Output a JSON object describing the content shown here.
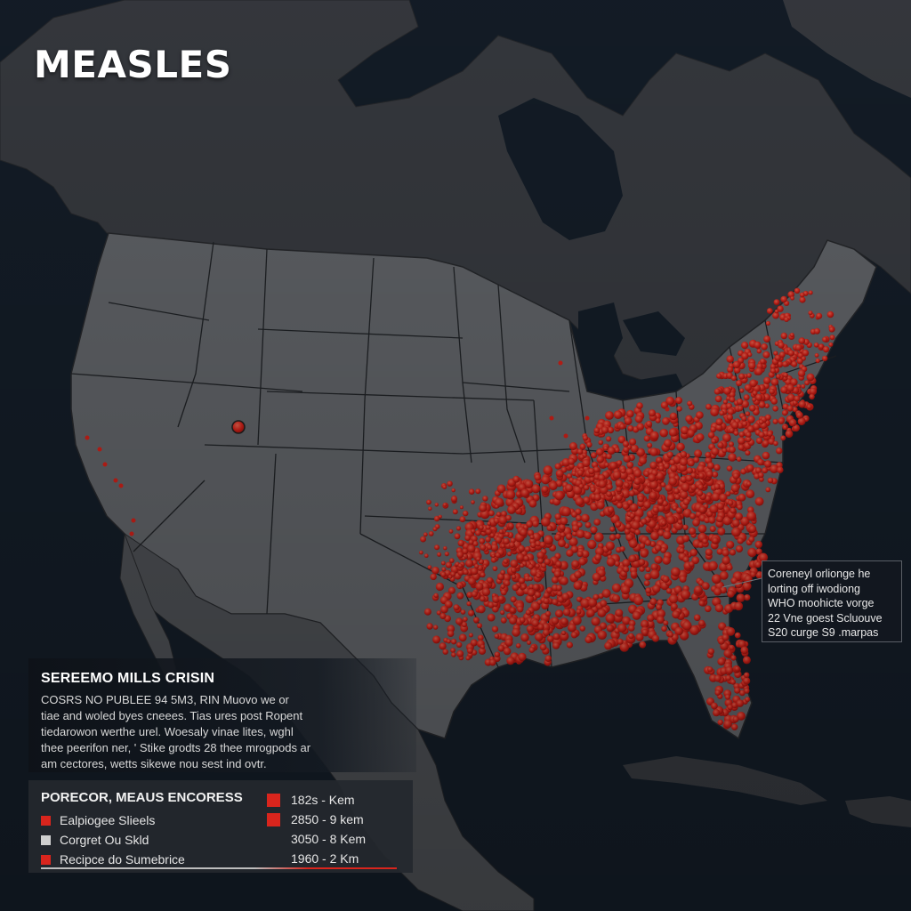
{
  "title": "MEASLES",
  "colors": {
    "ocean": "#16202c",
    "land_canada": "#3d4046",
    "land_us": "#6b6e73",
    "land_mexico": "#55585d",
    "borders": "#1c1e22",
    "outbreak": "#e3241b"
  },
  "callout": {
    "lines": [
      "Coreneyl orlionge he",
      "lorting off iwodiong",
      "WHO moohicte vorge",
      "22 Vne goest Scluouve",
      "S20 curge S9 .marpas"
    ]
  },
  "info_panel": {
    "title": "SEREEMO MILLS CRISIN",
    "lines": [
      "COSRS NO PUBLEE 94 5M3, RIN Muovo we or",
      "tiae and woled byes cneees. Tias ures post Ropent",
      "tiedarowon  werthe urel. Woesaly vinae lites, wghl",
      "thee peerifon ner, ' Stike grodts 28 thee mrogpods ar",
      "am cectores, wetts sikewe nou sest ind ovtr."
    ]
  },
  "legend": {
    "title": "PORECOR, MEAUS ENCORESS",
    "items_left": [
      {
        "label": "Ealpiogee Slieels",
        "color": "#d9251d"
      },
      {
        "label": "Corgret Ou Skld",
        "color": "#cfcfcf"
      },
      {
        "label": "Recipce do Sumebrice",
        "color": "#d9251d"
      }
    ],
    "items_right": [
      {
        "label": "182s - Kem",
        "color": "#d9251d"
      },
      {
        "label": "2850 - 9 kem",
        "color": "#d9251d"
      },
      {
        "label": "3050 - 8 Kem",
        "color": ""
      },
      {
        "label": "1960 - 2 Km",
        "color": ""
      }
    ]
  }
}
